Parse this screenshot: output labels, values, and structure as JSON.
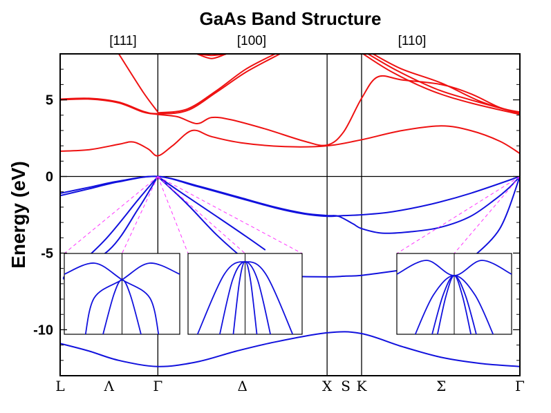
{
  "chart_data": {
    "type": "line",
    "title": "GaAs Band Structure",
    "ylabel": "Energy (eV)",
    "xlabel": "",
    "ylim": [
      -13,
      8
    ],
    "yticks": [
      5,
      0,
      -5,
      -10
    ],
    "yticklabels": [
      "5",
      "0",
      "-5",
      "-10"
    ],
    "directions": [
      "[111]",
      "[100]",
      "[110]"
    ],
    "kpoints": [
      "L",
      "Λ",
      "Γ",
      "Δ",
      "X",
      "S",
      "K",
      "Σ",
      "Γ"
    ],
    "kpoint_x": [
      0,
      0.5,
      1,
      1.866,
      2.732,
      2.923,
      3.085,
      3.9,
      4.705
    ],
    "zero_line": true,
    "series_color": {
      "conduction": "#ee1111",
      "valence": "#1111dd",
      "guide": "#ff33ff"
    },
    "bands": [
      {
        "group": "valence",
        "points": [
          [
            0,
            -10.9
          ],
          [
            0.3,
            -11.4
          ],
          [
            0.6,
            -12
          ],
          [
            1,
            -12.4
          ],
          [
            1.4,
            -12.1
          ],
          [
            1.8,
            -11.4
          ],
          [
            2.2,
            -10.8
          ],
          [
            2.732,
            -10.2
          ],
          [
            3.085,
            -10.25
          ],
          [
            3.5,
            -11.1
          ],
          [
            3.9,
            -11.8
          ],
          [
            4.3,
            -12.2
          ],
          [
            4.705,
            -12.4
          ]
        ]
      },
      {
        "group": "valence",
        "points": [
          [
            0,
            -1.1
          ],
          [
            0.3,
            -0.7
          ],
          [
            0.6,
            -0.3
          ],
          [
            1,
            0
          ],
          [
            1.4,
            -0.6
          ],
          [
            1.8,
            -1.3
          ],
          [
            2.2,
            -2
          ],
          [
            2.5,
            -2.4
          ],
          [
            2.732,
            -2.55
          ],
          [
            2.85,
            -2.6
          ],
          [
            3,
            -3.1
          ],
          [
            3.085,
            -3.4
          ],
          [
            3.3,
            -3.7
          ],
          [
            3.6,
            -3.6
          ],
          [
            3.9,
            -3.3
          ],
          [
            4.2,
            -2.6
          ],
          [
            4.45,
            -1.5
          ],
          [
            4.6,
            -0.7
          ],
          [
            4.705,
            0
          ]
        ]
      },
      {
        "group": "valence",
        "points": [
          [
            0,
            -1.25
          ],
          [
            0.3,
            -0.8
          ],
          [
            0.6,
            -0.35
          ],
          [
            1,
            0
          ],
          [
            1.4,
            -0.65
          ],
          [
            1.8,
            -1.35
          ],
          [
            2.2,
            -2.05
          ],
          [
            2.5,
            -2.45
          ],
          [
            2.732,
            -2.6
          ],
          [
            2.9,
            -2.55
          ],
          [
            3.085,
            -2.5
          ],
          [
            3.4,
            -2.3
          ],
          [
            3.8,
            -1.8
          ],
          [
            4.2,
            -1.1
          ],
          [
            4.705,
            0
          ]
        ]
      },
      {
        "group": "valence",
        "points": [
          [
            0.03,
            -6.7
          ],
          [
            0.45,
            -4.2
          ],
          [
            0.8,
            -1.5
          ],
          [
            1,
            0
          ]
        ]
      },
      {
        "group": "valence",
        "points": [
          [
            0.03,
            -6.6
          ],
          [
            0.5,
            -4.8
          ],
          [
            0.8,
            -2.1
          ],
          [
            1,
            0
          ]
        ]
      },
      {
        "group": "valence",
        "points": [
          [
            1,
            0
          ],
          [
            1.3,
            -1.8
          ],
          [
            1.6,
            -3.8
          ],
          [
            1.9,
            -5.5
          ],
          [
            2.1,
            -6.5
          ]
        ]
      },
      {
        "group": "valence",
        "points": [
          [
            1,
            0
          ],
          [
            1.25,
            -1.1
          ],
          [
            1.6,
            -2.6
          ],
          [
            1.9,
            -3.9
          ],
          [
            2.1,
            -4.8
          ]
        ]
      },
      {
        "group": "valence",
        "points": [
          [
            2.1,
            -6.4
          ],
          [
            2.3,
            -6.5
          ],
          [
            2.732,
            -6.55
          ],
          [
            2.923,
            -6.5
          ],
          [
            3.085,
            -6.45
          ],
          [
            3.5,
            -6.1
          ]
        ]
      },
      {
        "group": "valence",
        "points": [
          [
            4.2,
            -5.4
          ],
          [
            4.5,
            -3.4
          ],
          [
            4.705,
            0
          ]
        ]
      },
      {
        "group": "conduction",
        "points": [
          [
            0,
            1.65
          ],
          [
            0.3,
            1.75
          ],
          [
            0.6,
            2.1
          ],
          [
            0.75,
            2.25
          ],
          [
            0.9,
            1.8
          ],
          [
            1,
            1.35
          ],
          [
            1.15,
            2
          ],
          [
            1.35,
            3
          ],
          [
            1.55,
            2.6
          ],
          [
            1.85,
            2.2
          ],
          [
            2.3,
            1.95
          ],
          [
            2.732,
            2
          ],
          [
            3.085,
            2.4
          ],
          [
            3.5,
            3
          ],
          [
            3.9,
            3.3
          ],
          [
            4.2,
            3
          ],
          [
            4.5,
            2.3
          ],
          [
            4.705,
            1.5
          ]
        ]
      },
      {
        "group": "conduction",
        "points": [
          [
            0,
            5
          ],
          [
            0.3,
            5.05
          ],
          [
            0.6,
            4.8
          ],
          [
            0.85,
            4.2
          ],
          [
            1,
            4.05
          ],
          [
            1.2,
            3.9
          ],
          [
            1.4,
            3.45
          ],
          [
            1.55,
            3.85
          ],
          [
            1.75,
            3.7
          ],
          [
            2.1,
            3.1
          ],
          [
            2.5,
            2.3
          ],
          [
            2.732,
            2.05
          ],
          [
            2.9,
            2.9
          ],
          [
            3.085,
            5.1
          ],
          [
            3.25,
            6.5
          ],
          [
            3.5,
            6.3
          ],
          [
            3.9,
            6
          ],
          [
            4.2,
            5.4
          ],
          [
            4.5,
            4.5
          ],
          [
            4.705,
            4.2
          ]
        ]
      },
      {
        "group": "conduction",
        "points": [
          [
            0,
            5.05
          ],
          [
            0.3,
            5.1
          ],
          [
            0.6,
            4.85
          ],
          [
            0.85,
            4.25
          ],
          [
            1,
            4.1
          ],
          [
            1.3,
            4.3
          ],
          [
            1.6,
            5.5
          ],
          [
            1.9,
            6.8
          ],
          [
            2.25,
            8
          ]
        ]
      },
      {
        "group": "conduction",
        "points": [
          [
            1,
            4.15
          ],
          [
            1.3,
            4.4
          ],
          [
            1.6,
            5.6
          ],
          [
            1.9,
            7
          ],
          [
            2.2,
            8
          ]
        ]
      },
      {
        "group": "conduction",
        "points": [
          [
            0.6,
            8
          ],
          [
            0.85,
            5.5
          ],
          [
            1,
            4.2
          ]
        ]
      },
      {
        "group": "conduction",
        "points": [
          [
            1.4,
            8
          ],
          [
            1.55,
            7.7
          ],
          [
            1.7,
            8
          ]
        ]
      },
      {
        "group": "conduction",
        "points": [
          [
            1.4,
            8
          ],
          [
            1.55,
            7.9
          ],
          [
            1.7,
            8
          ]
        ]
      },
      {
        "group": "conduction",
        "points": [
          [
            3.1,
            8
          ],
          [
            3.4,
            6.8
          ],
          [
            3.8,
            5.6
          ],
          [
            4.2,
            4.8
          ],
          [
            4.705,
            4.05
          ]
        ]
      },
      {
        "group": "conduction",
        "points": [
          [
            3.15,
            8
          ],
          [
            3.45,
            6.9
          ],
          [
            3.85,
            5.7
          ],
          [
            4.2,
            5
          ],
          [
            4.705,
            4.1
          ]
        ]
      },
      {
        "group": "conduction",
        "points": [
          [
            3.2,
            8
          ],
          [
            3.5,
            7
          ],
          [
            3.9,
            6.1
          ],
          [
            4.3,
            4.9
          ],
          [
            4.705,
            4.1
          ]
        ]
      }
    ]
  }
}
